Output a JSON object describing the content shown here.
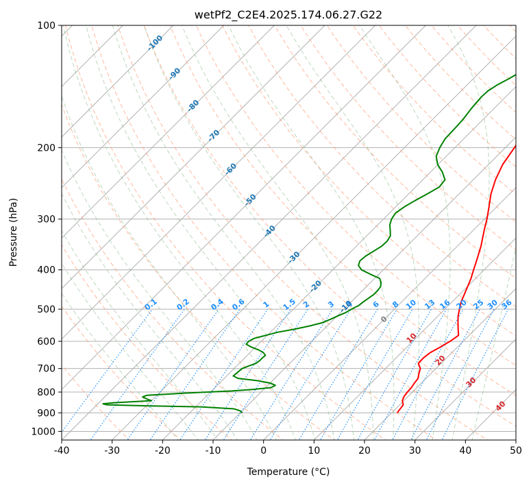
{
  "chart_data": {
    "type": "line",
    "subtype": "skew-T log-P diagram",
    "title": "wetPf2_C2E4.2025.174.06.27.G22",
    "xlabel": "Temperature (°C)",
    "ylabel": "Pressure (hPa)",
    "xlim": [
      -40,
      50
    ],
    "ylim": [
      1050,
      100
    ],
    "y_scale": "log",
    "grid": true,
    "x_ticks": [
      -40,
      -30,
      -20,
      -10,
      0,
      10,
      20,
      30,
      40,
      50
    ],
    "y_ticks": [
      100,
      200,
      300,
      400,
      500,
      600,
      700,
      800,
      900,
      1000
    ],
    "series": [
      {
        "color": "#ff0000",
        "points": [
          [
            900,
            21.1
          ],
          [
            880,
            20.9
          ],
          [
            860,
            20.7
          ],
          [
            840,
            19.7
          ],
          [
            820,
            19.2
          ],
          [
            800,
            19.0
          ],
          [
            780,
            18.9
          ],
          [
            760,
            18.6
          ],
          [
            740,
            18.4
          ],
          [
            720,
            17.6
          ],
          [
            700,
            16.9
          ],
          [
            680,
            15.5
          ],
          [
            660,
            15.4
          ],
          [
            640,
            15.7
          ],
          [
            620,
            16.6
          ],
          [
            600,
            17.4
          ],
          [
            580,
            17.9
          ],
          [
            560,
            16.6
          ],
          [
            540,
            15.3
          ],
          [
            520,
            14.0
          ],
          [
            500,
            12.9
          ],
          [
            480,
            11.8
          ],
          [
            450,
            10.5
          ],
          [
            420,
            9.1
          ],
          [
            400,
            7.9
          ],
          [
            380,
            6.7
          ],
          [
            350,
            4.7
          ],
          [
            320,
            2.2
          ],
          [
            300,
            0.5
          ],
          [
            280,
            -1.5
          ],
          [
            260,
            -3.7
          ],
          [
            240,
            -5.6
          ],
          [
            220,
            -7.2
          ],
          [
            200,
            -8.2
          ],
          [
            190,
            -8.8
          ],
          [
            180,
            -8.9
          ],
          [
            170,
            -9.5
          ],
          [
            160,
            -9.4
          ],
          [
            150,
            -8.7
          ],
          [
            140,
            -7.9
          ],
          [
            130,
            -6.6
          ],
          [
            120,
            -4.3
          ],
          [
            110,
            -2.0
          ],
          [
            105,
            -2.0
          ],
          [
            100,
            -1.9
          ]
        ]
      },
      {
        "color": "#008000",
        "points": [
          [
            900,
            -9.6
          ],
          [
            890,
            -10.4
          ],
          [
            880,
            -12.0
          ],
          [
            870,
            -19.0
          ],
          [
            865,
            -30.0
          ],
          [
            860,
            -38.0
          ],
          [
            855,
            -39.0
          ],
          [
            850,
            -37.0
          ],
          [
            845,
            -33.5
          ],
          [
            840,
            -30.0
          ],
          [
            835,
            -30.8
          ],
          [
            830,
            -31.5
          ],
          [
            822,
            -32.5
          ],
          [
            815,
            -32.0
          ],
          [
            805,
            -25.0
          ],
          [
            795,
            -16.0
          ],
          [
            788,
            -12.0
          ],
          [
            780,
            -8.9
          ],
          [
            770,
            -8.5
          ],
          [
            760,
            -10.0
          ],
          [
            750,
            -13.0
          ],
          [
            740,
            -17.3
          ],
          [
            730,
            -18.7
          ],
          [
            720,
            -18.6
          ],
          [
            710,
            -18.5
          ],
          [
            700,
            -18.4
          ],
          [
            690,
            -17.6
          ],
          [
            680,
            -16.7
          ],
          [
            670,
            -16.5
          ],
          [
            660,
            -16.5
          ],
          [
            650,
            -16.4
          ],
          [
            640,
            -17.3
          ],
          [
            630,
            -18.8
          ],
          [
            620,
            -20.8
          ],
          [
            610,
            -22.4
          ],
          [
            600,
            -22.5
          ],
          [
            590,
            -22.0
          ],
          [
            580,
            -20.3
          ],
          [
            570,
            -18.6
          ],
          [
            560,
            -15.8
          ],
          [
            550,
            -13.5
          ],
          [
            540,
            -11.6
          ],
          [
            530,
            -10.7
          ],
          [
            520,
            -9.9
          ],
          [
            510,
            -9.0
          ],
          [
            500,
            -8.5
          ],
          [
            490,
            -7.8
          ],
          [
            480,
            -7.6
          ],
          [
            470,
            -7.3
          ],
          [
            460,
            -7.0
          ],
          [
            450,
            -7.0
          ],
          [
            440,
            -7.2
          ],
          [
            430,
            -7.9
          ],
          [
            420,
            -9.0
          ],
          [
            410,
            -11.7
          ],
          [
            400,
            -14.3
          ],
          [
            390,
            -15.8
          ],
          [
            380,
            -16.4
          ],
          [
            370,
            -16.2
          ],
          [
            360,
            -15.6
          ],
          [
            350,
            -15.0
          ],
          [
            340,
            -14.9
          ],
          [
            330,
            -15.3
          ],
          [
            320,
            -16.4
          ],
          [
            310,
            -17.6
          ],
          [
            300,
            -18.4
          ],
          [
            290,
            -18.8
          ],
          [
            280,
            -18.3
          ],
          [
            270,
            -17.4
          ],
          [
            260,
            -16.3
          ],
          [
            250,
            -15.3
          ],
          [
            240,
            -15.6
          ],
          [
            230,
            -17.6
          ],
          [
            220,
            -20.1
          ],
          [
            210,
            -22.0
          ],
          [
            200,
            -23.0
          ],
          [
            190,
            -23.7
          ],
          [
            180,
            -23.8
          ],
          [
            170,
            -24.0
          ],
          [
            160,
            -24.5
          ],
          [
            150,
            -24.8
          ],
          [
            145,
            -24.7
          ],
          [
            140,
            -24.0
          ],
          [
            135,
            -22.9
          ],
          [
            130,
            -21.9
          ],
          [
            125,
            -21.0
          ],
          [
            120,
            -20.8
          ],
          [
            115,
            -21.6
          ],
          [
            110,
            -22.5
          ],
          [
            107,
            -22.1
          ],
          [
            104,
            -20.5
          ],
          [
            100,
            -19.4
          ]
        ]
      }
    ],
    "isotherm_labels": [
      "-100",
      "-90",
      "-80",
      "-70",
      "-60",
      "-50",
      "-40",
      "-30",
      "-20",
      "-10"
    ],
    "mixing_ratio_labels": [
      "0.1",
      "0.2",
      "0.4",
      "0.6",
      "1",
      "1.5",
      "2",
      "3",
      "4",
      "6",
      "8",
      "10",
      "13",
      "16",
      "20",
      "25",
      "30",
      "36"
    ],
    "wet_bulb_labels": [
      "0",
      "10",
      "20",
      "30",
      "40"
    ]
  },
  "colors": {
    "temperature": "#ff0000",
    "dewpoint": "#008000",
    "grid": "#b0b0b0",
    "dry_adiabat": "#ffa07a",
    "moist_adiabat": "#8fbc8f",
    "mixing_ratio": "#1e90ff",
    "isotherm_label": "#1f77b4",
    "wet_bulb_label": "#d62728"
  }
}
